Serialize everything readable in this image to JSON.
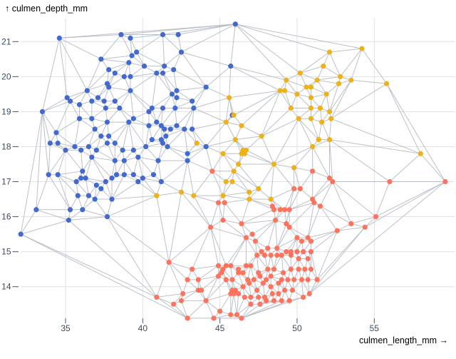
{
  "chart_data": {
    "type": "scatter",
    "subtype": "scatter-with-delaunay-mesh",
    "title": "",
    "xlabel": "culmen_length_mm →",
    "ylabel": "↑ culmen_depth_mm",
    "xlim": [
      31.5,
      60.3
    ],
    "ylim": [
      13.0,
      21.7
    ],
    "x_ticks": [
      35,
      40,
      45,
      50,
      55
    ],
    "y_ticks": [
      14,
      15,
      16,
      17,
      18,
      19,
      20,
      21
    ],
    "grid": true,
    "legend": false,
    "colors": {
      "background": "#ffffff",
      "grid": "#dee1e5",
      "mesh": "#b4bac3",
      "text": "#3d4a5a",
      "tick": "#4b5563"
    },
    "series": [
      {
        "name": "blue",
        "color": "#4269d0",
        "points": [
          [
            34.6,
            21.1
          ],
          [
            38.6,
            21.2
          ],
          [
            39.2,
            21.1
          ],
          [
            41.3,
            21.2
          ],
          [
            42.3,
            21.2
          ],
          [
            39.6,
            20.7
          ],
          [
            42.5,
            20.7
          ],
          [
            39.3,
            20.6
          ],
          [
            37.3,
            20.5
          ],
          [
            39.1,
            20.4
          ],
          [
            40.1,
            20.3
          ],
          [
            41.4,
            20.3
          ],
          [
            42.0,
            20.2
          ],
          [
            37.8,
            20.2
          ],
          [
            38.2,
            20.1
          ],
          [
            38.8,
            20.0
          ],
          [
            39.2,
            20.0
          ],
          [
            40.9,
            20.1
          ],
          [
            41.3,
            20.1
          ],
          [
            45.7,
            20.3
          ],
          [
            37.7,
            19.8
          ],
          [
            37.8,
            19.7
          ],
          [
            44.1,
            19.7
          ],
          [
            39.2,
            19.6
          ],
          [
            36.4,
            19.6
          ],
          [
            42.2,
            19.6
          ],
          [
            35.1,
            19.4
          ],
          [
            37.1,
            19.4
          ],
          [
            42.2,
            19.4
          ],
          [
            36.7,
            19.3
          ],
          [
            37.5,
            19.3
          ],
          [
            38.2,
            19.3
          ],
          [
            35.3,
            19.3
          ],
          [
            41.9,
            19.5
          ],
          [
            35.9,
            19.2
          ],
          [
            43.2,
            19.3
          ],
          [
            33.5,
            19.0
          ],
          [
            37.6,
            19.1
          ],
          [
            38.5,
            19.1
          ],
          [
            40.4,
            19.0
          ],
          [
            40.6,
            19.1
          ],
          [
            41.3,
            19.1
          ],
          [
            42.1,
            19.1
          ],
          [
            43.3,
            19.1
          ],
          [
            45.8,
            18.9
          ],
          [
            46.0,
            21.5
          ],
          [
            35.9,
            18.8
          ],
          [
            36.7,
            18.8
          ],
          [
            37.7,
            18.7
          ],
          [
            39.1,
            18.7
          ],
          [
            39.4,
            18.8
          ],
          [
            40.4,
            18.6
          ],
          [
            40.9,
            18.7
          ],
          [
            41.2,
            18.6
          ],
          [
            41.4,
            18.5
          ],
          [
            41.8,
            18.5
          ],
          [
            42.2,
            18.6
          ],
          [
            42.7,
            18.5
          ],
          [
            43.2,
            18.5
          ],
          [
            34.4,
            18.4
          ],
          [
            34.0,
            18.1
          ],
          [
            34.5,
            18.1
          ],
          [
            35.0,
            17.9
          ],
          [
            35.6,
            18.0
          ],
          [
            36.0,
            17.9
          ],
          [
            36.5,
            18.0
          ],
          [
            37.0,
            17.9
          ],
          [
            36.7,
            17.7
          ],
          [
            37.3,
            18.3
          ],
          [
            36.9,
            18.5
          ],
          [
            37.8,
            18.3
          ],
          [
            38.2,
            18.1
          ],
          [
            37.7,
            18.1
          ],
          [
            38.7,
            17.9
          ],
          [
            38.2,
            17.6
          ],
          [
            38.8,
            17.6
          ],
          [
            39.4,
            17.9
          ],
          [
            39.7,
            17.7
          ],
          [
            40.2,
            18.0
          ],
          [
            40.6,
            18.2
          ],
          [
            41.2,
            18.2
          ],
          [
            41.5,
            18.3
          ],
          [
            41.3,
            18.1
          ],
          [
            41.6,
            18.0
          ],
          [
            42.9,
            17.8
          ],
          [
            44.1,
            18.0
          ],
          [
            42.9,
            17.6
          ],
          [
            41.0,
            17.6
          ],
          [
            40.7,
            17.2
          ],
          [
            40.0,
            17.1
          ],
          [
            41.2,
            17.0
          ],
          [
            33.9,
            17.2
          ],
          [
            34.5,
            17.2
          ],
          [
            35.7,
            17.0
          ],
          [
            36.1,
            17.3
          ],
          [
            36.0,
            17.1
          ],
          [
            36.3,
            17.1
          ],
          [
            37.0,
            16.9
          ],
          [
            37.3,
            16.8
          ],
          [
            37.6,
            17.0
          ],
          [
            38.0,
            17.1
          ],
          [
            38.3,
            17.2
          ],
          [
            38.8,
            17.2
          ],
          [
            39.4,
            17.2
          ],
          [
            39.7,
            17.0
          ],
          [
            35.8,
            16.6
          ],
          [
            36.5,
            16.6
          ],
          [
            36.9,
            16.5
          ],
          [
            38.0,
            16.5
          ],
          [
            33.1,
            16.2
          ],
          [
            35.3,
            16.2
          ],
          [
            36.1,
            16.2
          ],
          [
            32.1,
            15.5
          ],
          [
            35.2,
            15.9
          ],
          [
            37.7,
            16.0
          ]
        ]
      },
      {
        "name": "orange",
        "color": "#efb118",
        "points": [
          [
            52.1,
            20.7
          ],
          [
            54.2,
            20.8
          ],
          [
            51.7,
            20.3
          ],
          [
            51.3,
            19.9
          ],
          [
            52.8,
            20.0
          ],
          [
            52.7,
            19.8
          ],
          [
            53.5,
            19.9
          ],
          [
            55.8,
            19.8
          ],
          [
            51.9,
            19.5
          ],
          [
            50.9,
            19.1
          ],
          [
            51.5,
            19.1
          ],
          [
            52.1,
            19.0
          ],
          [
            49.3,
            19.9
          ],
          [
            50.2,
            20.1
          ],
          [
            48.9,
            19.6
          ],
          [
            49.2,
            19.6
          ],
          [
            50.0,
            19.5
          ],
          [
            50.6,
            19.7
          ],
          [
            50.9,
            19.7
          ],
          [
            49.6,
            19.1
          ],
          [
            50.9,
            19.4
          ],
          [
            45.6,
            19.4
          ],
          [
            45.9,
            18.9
          ],
          [
            45.4,
            18.7
          ],
          [
            46.4,
            18.6
          ],
          [
            47.7,
            18.3
          ],
          [
            43.5,
            18.1
          ],
          [
            46.0,
            18.2
          ],
          [
            46.5,
            17.9
          ],
          [
            46.4,
            17.8
          ],
          [
            46.6,
            17.8
          ],
          [
            46.7,
            17.9
          ],
          [
            45.2,
            17.8
          ],
          [
            46.2,
            17.5
          ],
          [
            48.5,
            17.5
          ],
          [
            49.8,
            17.4
          ],
          [
            45.9,
            17.3
          ],
          [
            45.4,
            17.0
          ],
          [
            45.8,
            17.0
          ],
          [
            47.5,
            16.8
          ],
          [
            46.9,
            16.7
          ],
          [
            46.9,
            16.5
          ],
          [
            48.3,
            16.5
          ],
          [
            42.5,
            16.7
          ],
          [
            43.3,
            16.6
          ],
          [
            45.2,
            16.6
          ],
          [
            40.9,
            16.6
          ],
          [
            51.6,
            18.7
          ],
          [
            52.2,
            18.8
          ],
          [
            51.4,
            18.2
          ],
          [
            52.1,
            18.2
          ],
          [
            51.0,
            18.0
          ],
          [
            58.0,
            17.8
          ],
          [
            50.1,
            18.8
          ],
          [
            50.9,
            18.8
          ]
        ]
      },
      {
        "name": "red",
        "color": "#ff725c",
        "points": [
          [
            44.5,
            17.3
          ],
          [
            44.9,
            16.4
          ],
          [
            45.3,
            16.4
          ],
          [
            48.4,
            16.3
          ],
          [
            48.5,
            16.2
          ],
          [
            48.9,
            16.2
          ],
          [
            49.2,
            16.2
          ],
          [
            49.5,
            16.2
          ],
          [
            49.8,
            16.8
          ],
          [
            50.2,
            16.8
          ],
          [
            51.0,
            17.3
          ],
          [
            52.1,
            17.1
          ],
          [
            52.3,
            17.0
          ],
          [
            56.0,
            17.0
          ],
          [
            59.6,
            17.0
          ],
          [
            51.0,
            16.5
          ],
          [
            51.1,
            16.4
          ],
          [
            51.5,
            16.3
          ],
          [
            52.6,
            15.6
          ],
          [
            53.5,
            15.8
          ],
          [
            54.4,
            15.7
          ],
          [
            55.1,
            16.0
          ],
          [
            51.3,
            14.2
          ],
          [
            44.4,
            15.7
          ],
          [
            45.2,
            15.9
          ],
          [
            46.4,
            15.8
          ],
          [
            47.1,
            15.5
          ],
          [
            46.7,
            15.4
          ],
          [
            47.3,
            15.3
          ],
          [
            48.6,
            15.9
          ],
          [
            49.3,
            15.8
          ],
          [
            49.5,
            15.7
          ],
          [
            50.0,
            15.4
          ],
          [
            50.3,
            15.3
          ],
          [
            50.7,
            15.4
          ],
          [
            50.9,
            15.3
          ],
          [
            50.0,
            15.0
          ],
          [
            50.4,
            15.0
          ],
          [
            50.9,
            15.0
          ],
          [
            49.6,
            15.0
          ],
          [
            49.3,
            15.0
          ],
          [
            48.7,
            15.1
          ],
          [
            48.1,
            15.1
          ],
          [
            47.7,
            15.0
          ],
          [
            47.4,
            14.9
          ],
          [
            47.9,
            14.9
          ],
          [
            48.3,
            14.9
          ],
          [
            48.7,
            14.9
          ],
          [
            49.0,
            14.9
          ],
          [
            49.6,
            14.9
          ],
          [
            50.1,
            14.8
          ],
          [
            50.7,
            14.8
          ],
          [
            41.7,
            14.7
          ],
          [
            43.2,
            14.5
          ],
          [
            42.9,
            14.2
          ],
          [
            43.6,
            14.2
          ],
          [
            43.6,
            13.9
          ],
          [
            43.8,
            13.9
          ],
          [
            42.6,
            13.8
          ],
          [
            42.0,
            13.5
          ],
          [
            42.5,
            13.6
          ],
          [
            42.9,
            13.1
          ],
          [
            44.1,
            13.6
          ],
          [
            45.0,
            13.3
          ],
          [
            45.7,
            13.2
          ],
          [
            46.1,
            13.2
          ],
          [
            40.9,
            13.7
          ],
          [
            44.9,
            14.6
          ],
          [
            45.2,
            14.5
          ],
          [
            45.4,
            14.6
          ],
          [
            45.7,
            14.6
          ],
          [
            45.1,
            14.4
          ],
          [
            44.9,
            14.3
          ],
          [
            45.4,
            14.2
          ],
          [
            45.8,
            14.2
          ],
          [
            46.2,
            14.5
          ],
          [
            46.2,
            14.4
          ],
          [
            46.5,
            14.4
          ],
          [
            46.7,
            14.6
          ],
          [
            47.0,
            14.6
          ],
          [
            45.8,
            13.9
          ],
          [
            46.0,
            13.9
          ],
          [
            45.9,
            13.8
          ],
          [
            46.2,
            13.8
          ],
          [
            45.7,
            13.8
          ],
          [
            46.5,
            14.0
          ],
          [
            46.9,
            14.1
          ],
          [
            46.8,
            14.2
          ],
          [
            47.2,
            14.2
          ],
          [
            47.6,
            14.3
          ],
          [
            47.5,
            14.4
          ],
          [
            48.1,
            14.5
          ],
          [
            48.5,
            14.5
          ],
          [
            48.3,
            14.3
          ],
          [
            48.0,
            14.2
          ],
          [
            47.8,
            14.1
          ],
          [
            47.4,
            13.9
          ],
          [
            48.3,
            14.0
          ],
          [
            48.8,
            14.1
          ],
          [
            49.0,
            14.2
          ],
          [
            49.4,
            14.2
          ],
          [
            49.8,
            14.2
          ],
          [
            50.3,
            14.2
          ],
          [
            50.7,
            14.2
          ],
          [
            49.1,
            14.4
          ],
          [
            49.6,
            14.5
          ],
          [
            50.1,
            14.5
          ],
          [
            50.5,
            14.5
          ],
          [
            50.9,
            14.5
          ],
          [
            49.2,
            13.9
          ],
          [
            49.7,
            13.9
          ],
          [
            48.8,
            13.8
          ],
          [
            48.4,
            13.8
          ],
          [
            47.9,
            13.7
          ],
          [
            47.5,
            13.7
          ],
          [
            47.0,
            13.7
          ],
          [
            46.6,
            13.7
          ],
          [
            47.0,
            13.5
          ],
          [
            47.6,
            13.5
          ],
          [
            48.0,
            13.6
          ],
          [
            48.5,
            13.6
          ],
          [
            49.0,
            13.6
          ],
          [
            49.5,
            13.6
          ],
          [
            50.4,
            13.7
          ],
          [
            50.8,
            13.8
          ],
          [
            44.6,
            13.1
          ],
          [
            46.4,
            13.1
          ]
        ]
      }
    ]
  }
}
